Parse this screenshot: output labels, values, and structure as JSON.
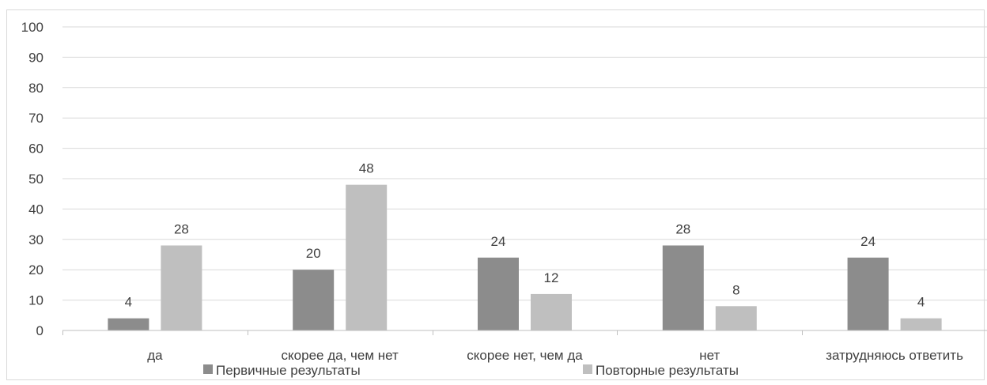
{
  "chart_data": {
    "type": "bar",
    "categories": [
      "да",
      "скорее да, чем нет",
      "скорее нет, чем да",
      "нет",
      "затрудняюсь ответить"
    ],
    "series": [
      {
        "name": "Первичные результаты",
        "values": [
          4,
          20,
          24,
          28,
          24
        ],
        "color": "#8c8c8c"
      },
      {
        "name": "Повторные результаты",
        "values": [
          28,
          48,
          12,
          8,
          4
        ],
        "color": "#bfbfbf"
      }
    ],
    "yticks": [
      "0",
      "10",
      "20",
      "30",
      "40",
      "50",
      "60",
      "70",
      "80",
      "90",
      "100"
    ],
    "ylim": [
      0,
      100
    ],
    "grid": true,
    "data_labels": true,
    "legend_position": "bottom"
  }
}
